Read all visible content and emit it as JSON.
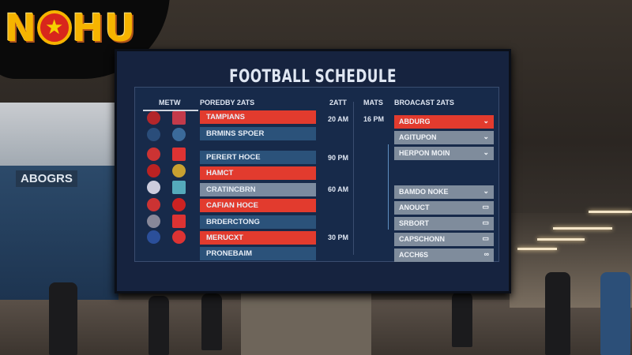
{
  "logo": {
    "text_left": "N",
    "text_mid": "★",
    "text_right": "HU",
    "full": "NOHU"
  },
  "background": {
    "stadium_sign": "ABOGRS"
  },
  "screen": {
    "title": "FOOTBALL SCHEDULE",
    "headers": {
      "teams": "METW",
      "matches": "POREDBY 2ATS",
      "time": "2ATT",
      "mats": "MATS",
      "broadcast": "BROACAST 2ATS"
    },
    "teams": [
      {
        "name": "TAMPIANS",
        "color": "red"
      },
      {
        "name": "BRMINS SPOER",
        "color": "blue"
      },
      {
        "name": "PERERT HOCE",
        "color": "blue"
      },
      {
        "name": "HAMCT",
        "color": "red"
      },
      {
        "name": "CRATINCBRN",
        "color": "grey"
      },
      {
        "name": "CAFIAN HOCE",
        "color": "red"
      },
      {
        "name": "BRDERCTONG",
        "color": "blue"
      },
      {
        "name": "MERUCXT",
        "color": "red"
      },
      {
        "name": "PRONEBAIM",
        "color": "blue"
      }
    ],
    "times": [
      "20 AM",
      "90 PM",
      "60 AM",
      "30 PM"
    ],
    "mats_time": "16 PM",
    "broadcasts": [
      {
        "name": "ABDURG",
        "icon": "chevron-down",
        "highlight": true
      },
      {
        "name": "AGITUPON",
        "icon": "chevron-down"
      },
      {
        "name": "HERPON MOIN",
        "icon": "chevron-down"
      },
      {
        "name": "BAMDO NOKE",
        "icon": "chevron-down"
      },
      {
        "name": "ANOUCT",
        "icon": "tv"
      },
      {
        "name": "SRBORT",
        "icon": "tv"
      },
      {
        "name": "CAPSCHONN",
        "icon": "tv"
      },
      {
        "name": "ACCH6S",
        "icon": "infinity"
      }
    ],
    "colors": {
      "red": "#e23b2e",
      "blue": "#2b527a",
      "navy": "#16233f"
    }
  }
}
